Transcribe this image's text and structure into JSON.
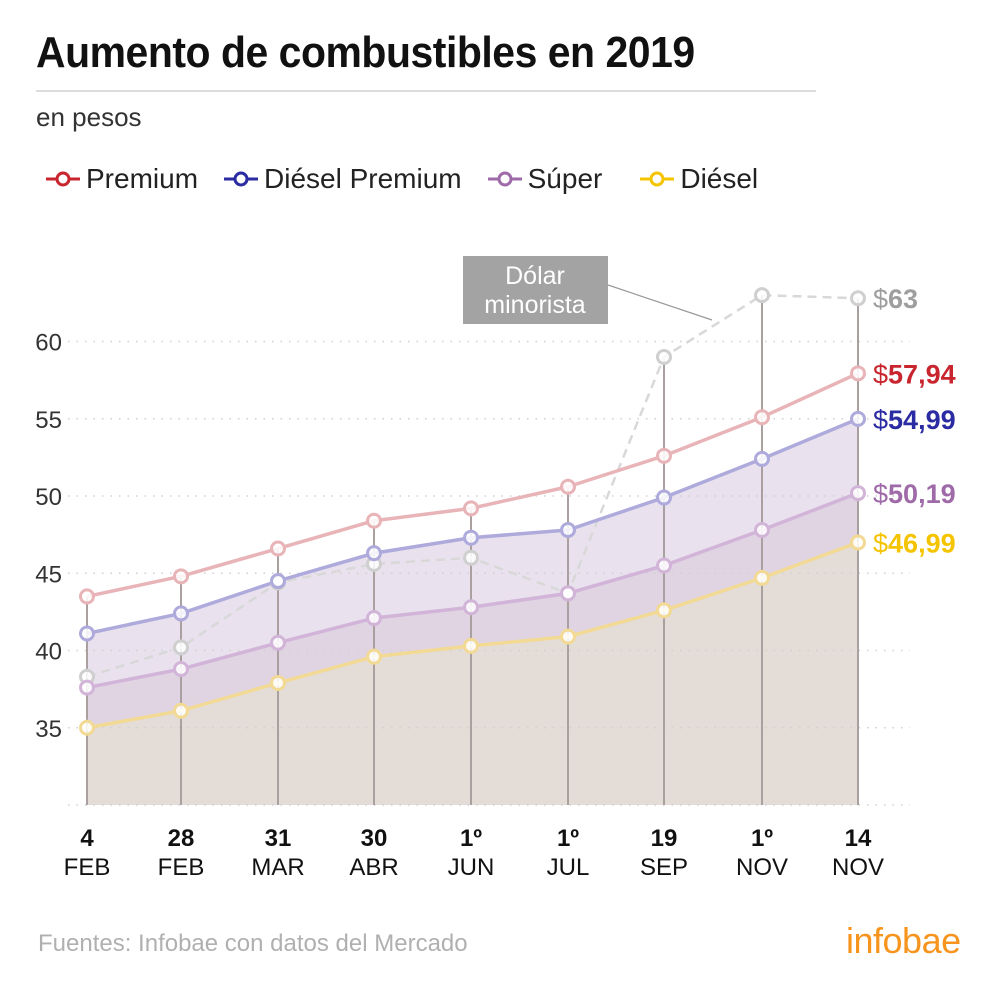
{
  "header": {
    "title": "Aumento de combustibles en 2019",
    "subtitle": "en pesos"
  },
  "legend": [
    {
      "label": "Premium",
      "color": "#c8252f"
    },
    {
      "label": "Diésel Premium",
      "color": "#2b2ba3"
    },
    {
      "label": "Súper",
      "color": "#9e6aa8"
    },
    {
      "label": "Diésel",
      "color": "#f5c400"
    }
  ],
  "annotation": {
    "line1": "Dólar",
    "line2": "minorista"
  },
  "footer": {
    "source": "Fuentes: Infobae con datos del Mercado",
    "logo": "infobae",
    "logo_color": "#f7941d"
  },
  "chart_data": {
    "type": "line",
    "title": "Aumento de combustibles en 2019",
    "subtitle": "en pesos",
    "xlabel": "",
    "ylabel": "",
    "ylim": [
      30,
      63.5
    ],
    "yticks": [
      35,
      40,
      45,
      50,
      55,
      60
    ],
    "grid": true,
    "legend_position": "top-left",
    "categories": [
      {
        "day": "4",
        "month": "FEB"
      },
      {
        "day": "28",
        "month": "FEB"
      },
      {
        "day": "31",
        "month": "MAR"
      },
      {
        "day": "30",
        "month": "ABR"
      },
      {
        "day": "1º",
        "month": "JUN"
      },
      {
        "day": "1º",
        "month": "JUL"
      },
      {
        "day": "19",
        "month": "SEP"
      },
      {
        "day": "1º",
        "month": "NOV"
      },
      {
        "day": "14",
        "month": "NOV"
      }
    ],
    "series": [
      {
        "name": "Premium",
        "color": "#c8252f",
        "line_color": "#e8b4b8",
        "fill": null,
        "values": [
          43.5,
          44.8,
          46.6,
          48.4,
          49.2,
          50.6,
          52.6,
          55.1,
          57.94
        ],
        "end_label_prefix": "$",
        "end_label": "57,94"
      },
      {
        "name": "Diésel Premium",
        "color": "#2b2ba3",
        "line_color": "#aeaadb",
        "fill": "#e9e2ee",
        "values": [
          41.1,
          42.4,
          44.5,
          46.3,
          47.3,
          47.8,
          49.9,
          52.4,
          54.99
        ],
        "end_label_prefix": "$",
        "end_label": "54,99"
      },
      {
        "name": "Súper",
        "color": "#9e6aa8",
        "line_color": "#d2b4d8",
        "fill": "#e0d4e3",
        "values": [
          37.6,
          38.8,
          40.5,
          42.1,
          42.8,
          43.7,
          45.5,
          47.8,
          50.19
        ],
        "end_label_prefix": "$",
        "end_label": "50,19"
      },
      {
        "name": "Diésel",
        "color": "#f5c400",
        "line_color": "#f2da95",
        "fill": "#e4dcd6",
        "values": [
          35.0,
          36.1,
          37.9,
          39.6,
          40.3,
          40.9,
          42.6,
          44.7,
          46.99
        ],
        "end_label_prefix": "$",
        "end_label": "46,99"
      },
      {
        "name": "Dólar minorista",
        "color": "#9e9e9e",
        "line_color": "#d8d8d8",
        "dashed": true,
        "fill": null,
        "values": [
          38.3,
          40.2,
          44.4,
          45.6,
          46.0,
          43.7,
          59.0,
          63.0,
          62.8
        ],
        "end_label_prefix": "$",
        "end_label": "63"
      }
    ]
  }
}
